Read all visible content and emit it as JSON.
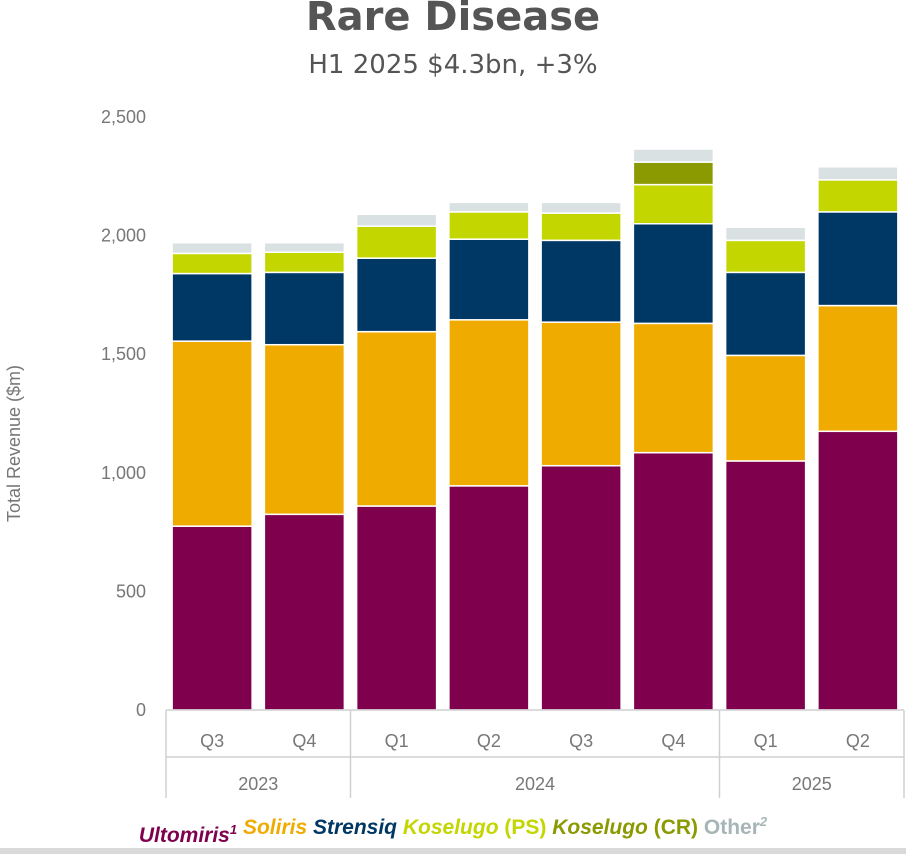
{
  "title": "Rare Disease",
  "subtitle": "H1 2025 $4.3bn, +3%",
  "chart_data": {
    "type": "bar",
    "stacked": true,
    "title": "Rare Disease",
    "subtitle": "H1 2025 $4.3bn, +3%",
    "ylabel": "Total Revenue ($m)",
    "ylim": [
      0,
      2500
    ],
    "yticks": [
      0,
      500,
      1000,
      1500,
      2000,
      2500
    ],
    "ytick_labels": [
      "0",
      "500",
      "1,000",
      "1,500",
      "2,000",
      "2,500"
    ],
    "grid": false,
    "categories": [
      "Q3",
      "Q4",
      "Q1",
      "Q2",
      "Q3",
      "Q4",
      "Q1",
      "Q2"
    ],
    "groups": [
      {
        "label": "2023",
        "start": 0,
        "end": 1
      },
      {
        "label": "2024",
        "start": 2,
        "end": 5
      },
      {
        "label": "2025",
        "start": 6,
        "end": 7
      }
    ],
    "series": [
      {
        "name": "Ultomiris",
        "sup": "1",
        "italic": true,
        "color": "#7f004d",
        "values": [
          775,
          825,
          860,
          945,
          1030,
          1085,
          1050,
          1175
        ]
      },
      {
        "name": "Soliris",
        "italic": true,
        "color": "#f0ab00",
        "values": [
          780,
          715,
          735,
          700,
          605,
          545,
          445,
          530
        ]
      },
      {
        "name": "Strensiq",
        "italic": true,
        "color": "#003865",
        "values": [
          285,
          305,
          310,
          340,
          345,
          420,
          350,
          395
        ]
      },
      {
        "name": "Koselugo",
        "suffix": " (PS)",
        "italic": true,
        "color": "#c4d600",
        "values": [
          85,
          85,
          135,
          115,
          115,
          165,
          135,
          135
        ]
      },
      {
        "name": "Koselugo",
        "suffix": " (CR)",
        "italic": true,
        "color": "#8a9a00",
        "values": [
          0,
          0,
          0,
          0,
          0,
          95,
          0,
          0
        ]
      },
      {
        "name": "Other",
        "sup": "2",
        "italic": false,
        "color": "#d9e1e2",
        "values": [
          45,
          40,
          50,
          40,
          45,
          55,
          55,
          55
        ]
      }
    ],
    "legend": "bottom"
  }
}
